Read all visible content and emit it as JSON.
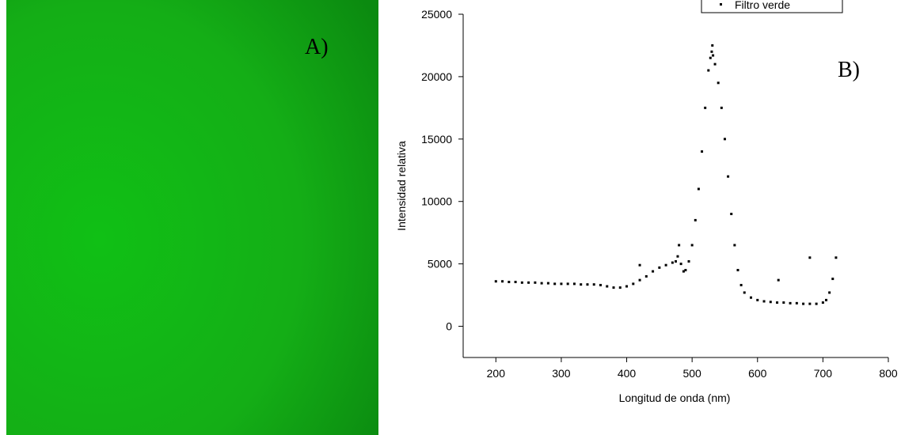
{
  "panel_a": {
    "label": "A)"
  },
  "chart_data": {
    "type": "scatter",
    "annotation": "B)",
    "xlabel": "Longitud de onda (nm)",
    "ylabel": "Intensidad relativa",
    "xlim": [
      150,
      800
    ],
    "xticks": [
      200,
      300,
      400,
      500,
      600,
      700,
      800
    ],
    "ylim": [
      -2500,
      25000
    ],
    "yticks": [
      0,
      5000,
      10000,
      15000,
      20000,
      25000
    ],
    "legend": "top-right",
    "series": [
      {
        "name": "Filtro verde",
        "color": "#000000",
        "x": [
          200,
          210,
          220,
          230,
          240,
          250,
          260,
          270,
          280,
          290,
          300,
          310,
          320,
          330,
          340,
          350,
          360,
          370,
          380,
          390,
          400,
          410,
          420,
          430,
          440,
          450,
          460,
          470,
          475,
          478,
          480,
          483,
          487,
          490,
          495,
          500,
          505,
          510,
          515,
          520,
          525,
          528,
          530,
          532,
          535,
          540,
          545,
          550,
          555,
          560,
          565,
          570,
          575,
          580,
          590,
          600,
          610,
          620,
          630,
          640,
          650,
          660,
          670,
          680,
          690,
          700,
          705,
          710,
          715,
          720,
          420,
          632,
          680,
          531
        ],
        "values": [
          3600,
          3600,
          3550,
          3550,
          3500,
          3500,
          3500,
          3450,
          3450,
          3400,
          3400,
          3400,
          3400,
          3350,
          3350,
          3350,
          3300,
          3200,
          3100,
          3100,
          3200,
          3400,
          3700,
          4000,
          4400,
          4700,
          4900,
          5100,
          5200,
          5600,
          6500,
          5000,
          4400,
          4500,
          5200,
          6500,
          8500,
          11000,
          14000,
          17500,
          20500,
          21500,
          22000,
          21700,
          21000,
          19500,
          17500,
          15000,
          12000,
          9000,
          6500,
          4500,
          3300,
          2700,
          2300,
          2100,
          2000,
          1950,
          1900,
          1900,
          1850,
          1850,
          1800,
          1800,
          1800,
          1900,
          2100,
          2700,
          3800,
          5500,
          4900,
          3700,
          5500,
          22500
        ]
      }
    ]
  }
}
